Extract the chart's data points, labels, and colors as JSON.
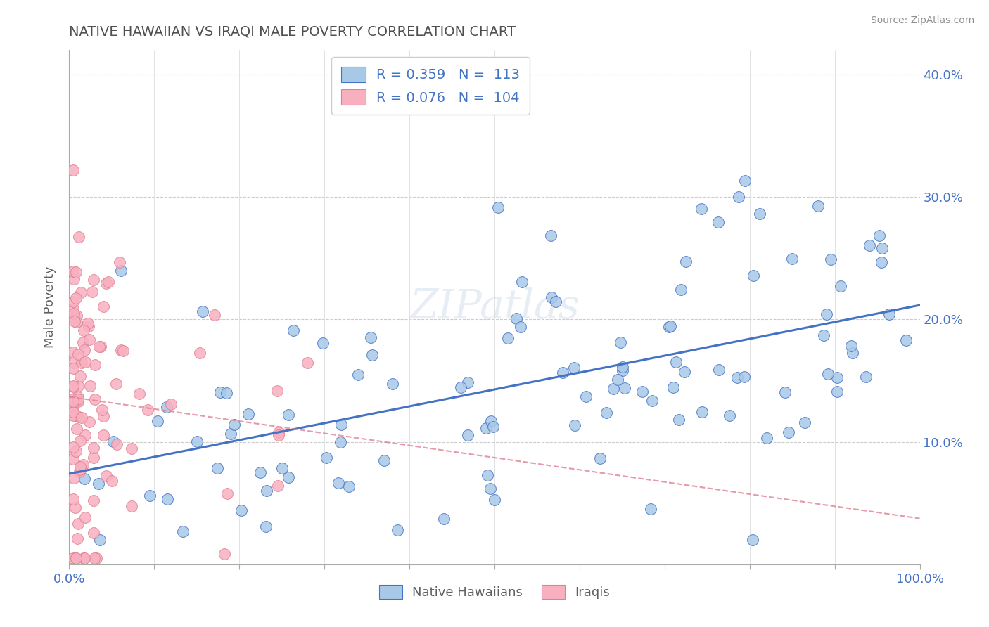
{
  "title": "NATIVE HAWAIIAN VS IRAQI MALE POVERTY CORRELATION CHART",
  "source": "Source: ZipAtlas.com",
  "ylabel": "Male Poverty",
  "xlim": [
    0,
    1.0
  ],
  "ylim": [
    0,
    0.42
  ],
  "R_hawaiian": 0.359,
  "N_hawaiian": 113,
  "R_iraqi": 0.076,
  "N_iraqi": 104,
  "color_hawaiian": "#a8c8e8",
  "color_iraqi": "#f8b0c0",
  "line_color_hawaiian": "#4472c4",
  "line_color_iraqi": "#e08090",
  "title_color": "#505050",
  "source_color": "#909090",
  "label_color": "#606060",
  "tick_color": "#4472c4",
  "watermark": "ZIPatlas"
}
